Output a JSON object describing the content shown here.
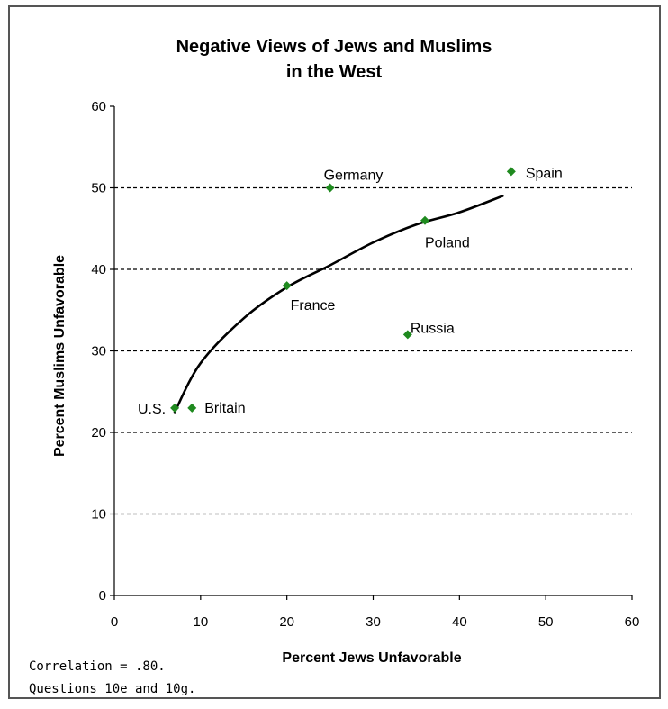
{
  "chart_data": {
    "type": "scatter",
    "title": [
      "Negative Views of Jews and Muslims",
      "in the West"
    ],
    "xlabel": "Percent Jews Unfavorable",
    "ylabel": "Percent Muslims Unfavorable",
    "xlim": [
      0,
      60
    ],
    "ylim": [
      0,
      60
    ],
    "xticks": [
      0,
      10,
      20,
      30,
      40,
      50,
      60
    ],
    "yticks": [
      0,
      10,
      20,
      30,
      40,
      50,
      60
    ],
    "grid": "horizontal dashed",
    "marker_color": "#1f8a1f",
    "points": [
      {
        "label": "U.S.",
        "x": 7,
        "y": 23
      },
      {
        "label": "Britain",
        "x": 9,
        "y": 23
      },
      {
        "label": "France",
        "x": 20,
        "y": 38
      },
      {
        "label": "Germany",
        "x": 25,
        "y": 50
      },
      {
        "label": "Russia",
        "x": 34,
        "y": 32
      },
      {
        "label": "Poland",
        "x": 36,
        "y": 46
      },
      {
        "label": "Spain",
        "x": 46,
        "y": 52
      }
    ],
    "trendline": [
      [
        7,
        22.5
      ],
      [
        10,
        28.5
      ],
      [
        15,
        34
      ],
      [
        20,
        37.8
      ],
      [
        25,
        40.5
      ],
      [
        30,
        43.3
      ],
      [
        35,
        45.5
      ],
      [
        40,
        47
      ],
      [
        45,
        49
      ]
    ]
  },
  "notes": [
    "Correlation = .80.",
    "Questions 10e and 10g."
  ]
}
